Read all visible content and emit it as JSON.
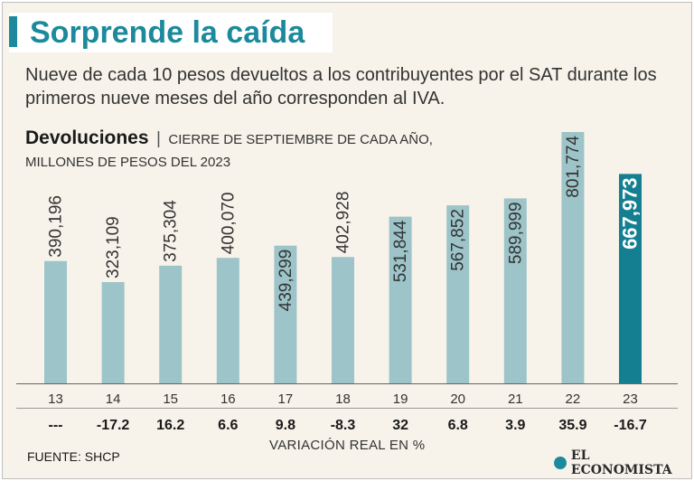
{
  "title": "Sorprende la caída",
  "subtitle": "Nueve de cada 10 pesos devueltos a los contribuyentes por el SAT durante los primeros nueve meses del año corresponden al IVA.",
  "chart_data": {
    "type": "bar",
    "title": "Devoluciones",
    "title_separator": "|",
    "subtitle_line1": "CIERRE DE SEPTIEMBRE DE CADA AÑO,",
    "subtitle_line2": "MILLONES DE PESOS DEL 2023",
    "categories": [
      "13",
      "14",
      "15",
      "16",
      "17",
      "18",
      "19",
      "20",
      "21",
      "22",
      "23"
    ],
    "value_labels": [
      "390,196",
      "323,109",
      "375,304",
      "400,070",
      "439,299",
      "402,928",
      "531,844",
      "567,852",
      "589,999",
      "801,774",
      "667,973"
    ],
    "values": [
      390196,
      323109,
      375304,
      400070,
      439299,
      402928,
      531844,
      567852,
      589999,
      801774,
      667973
    ],
    "variation_labels": [
      "---",
      "-17.2",
      "16.2",
      "6.6",
      "9.8",
      "-8.3",
      "32",
      "6.8",
      "3.9",
      "35.9",
      "-16.7"
    ],
    "variation_title": "VARIACIÓN REAL EN %",
    "highlight_index": 10,
    "ylim": [
      0,
      801774
    ],
    "bar_color": "#9cc4c9",
    "highlight_color": "#137f91"
  },
  "footer": {
    "source": "FUENTE: SHCP",
    "brand": "EL ECONOMISTA"
  }
}
